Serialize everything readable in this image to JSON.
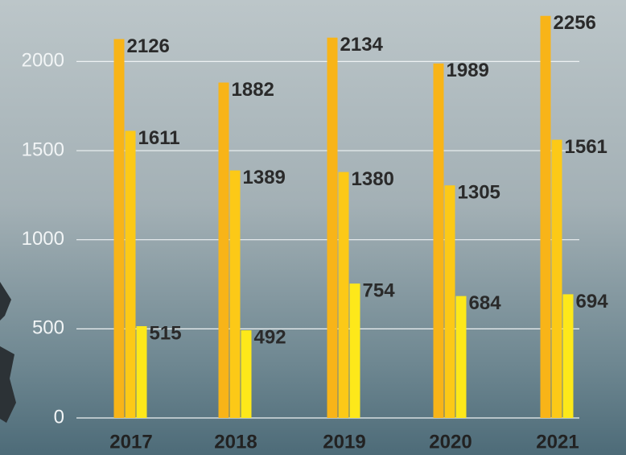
{
  "chart_data": {
    "type": "bar",
    "categories": [
      "2017",
      "2018",
      "2019",
      "2020",
      "2021"
    ],
    "series": [
      {
        "color": "#f8b418",
        "values": [
          2126,
          1882,
          2134,
          1989,
          2256
        ]
      },
      {
        "color": "#fcc917",
        "values": [
          1611,
          1389,
          1380,
          1305,
          1561
        ]
      },
      {
        "color": "#fde81a",
        "values": [
          515,
          492,
          754,
          684,
          694
        ]
      }
    ],
    "ylim": [
      0,
      2300
    ],
    "yticks": [
      0,
      500,
      1000,
      1500,
      2000
    ],
    "grid": true
  }
}
